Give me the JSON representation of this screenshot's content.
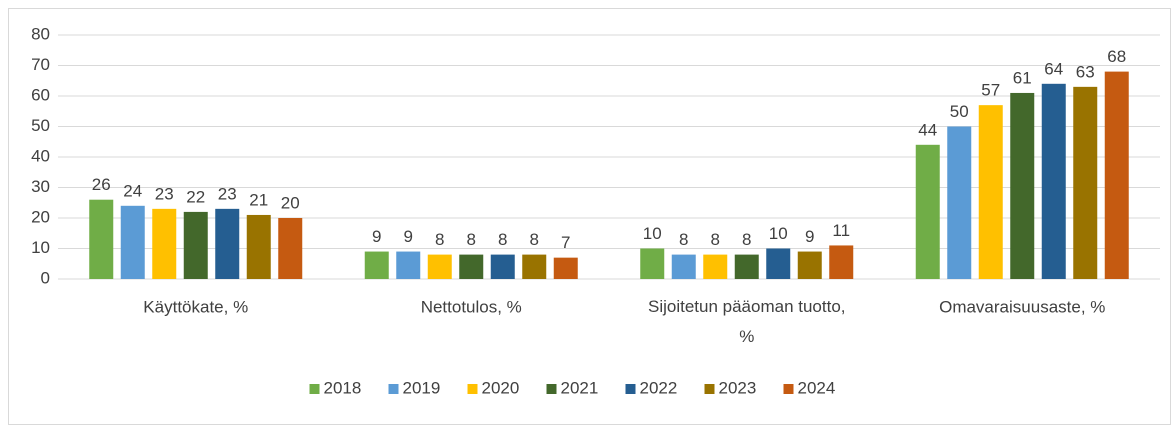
{
  "chart_data": {
    "type": "bar",
    "categories": [
      "Käyttökate, %",
      "Nettotulos, %",
      "Sijoitetun pääoman tuotto, %",
      "Omavaraisuusaste, %"
    ],
    "series": [
      {
        "name": "2018",
        "color": "#70ad47",
        "values": [
          26,
          9,
          10,
          44
        ]
      },
      {
        "name": "2019",
        "color": "#5b9bd5",
        "values": [
          24,
          9,
          8,
          50
        ]
      },
      {
        "name": "2020",
        "color": "#ffc000",
        "values": [
          23,
          8,
          8,
          57
        ]
      },
      {
        "name": "2021",
        "color": "#43682b",
        "values": [
          22,
          8,
          8,
          61
        ]
      },
      {
        "name": "2022",
        "color": "#255e91",
        "values": [
          23,
          8,
          10,
          64
        ]
      },
      {
        "name": "2023",
        "color": "#997300",
        "values": [
          21,
          8,
          9,
          63
        ]
      },
      {
        "name": "2024",
        "color": "#c55a11",
        "values": [
          20,
          7,
          11,
          68
        ]
      }
    ],
    "ylim": [
      0,
      80
    ],
    "yticks": [
      0,
      10,
      20,
      30,
      40,
      50,
      60,
      70,
      80
    ],
    "grid": true,
    "legend": "bottom"
  }
}
